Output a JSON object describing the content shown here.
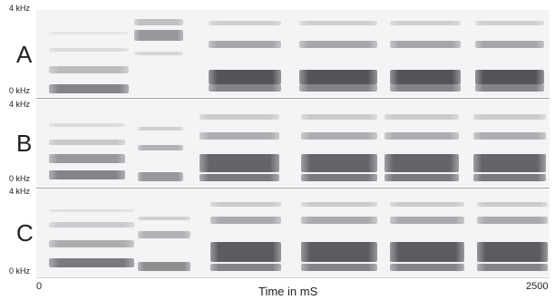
{
  "figure": {
    "panels": [
      {
        "letter": "A",
        "top_label": "4 kHz",
        "bottom_label": "0 kHz"
      },
      {
        "letter": "B",
        "top_label": "4 kHz",
        "bottom_label": "0 kHz"
      },
      {
        "letter": "C",
        "top_label": "4 kHz",
        "bottom_label": "0 kHz"
      }
    ],
    "x_axis": {
      "start_label": "0",
      "end_label": "2500",
      "title": "Time in mS"
    }
  }
}
